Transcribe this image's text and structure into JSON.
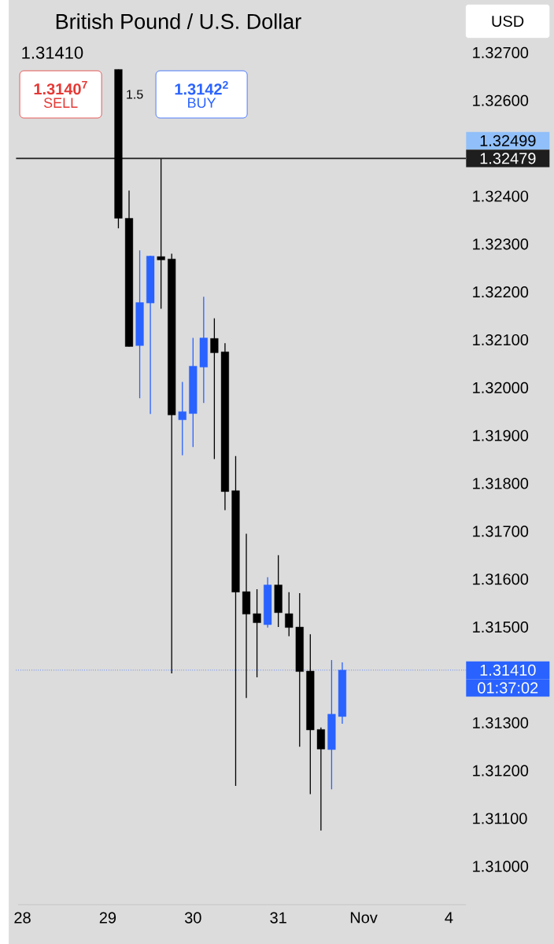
{
  "chart_data": {
    "type": "candlestick",
    "title": "British Pound / U.S. Dollar",
    "categories": [
      "28",
      null,
      null,
      null,
      null,
      null,
      null,
      null,
      "29",
      null,
      null,
      null,
      null,
      null,
      null,
      null,
      "30",
      null,
      null,
      null,
      null,
      null,
      null,
      null,
      "31",
      null,
      null,
      null,
      null,
      null,
      null,
      null,
      "Nov",
      null,
      null,
      null,
      null,
      null,
      null,
      null,
      "4"
    ],
    "ohlc": [
      null,
      null,
      null,
      null,
      null,
      null,
      null,
      null,
      null,
      [
        1.32665,
        1.32665,
        1.32333,
        1.32354
      ],
      [
        1.32354,
        1.32412,
        1.32086,
        1.32086
      ],
      [
        1.32088,
        1.32287,
        1.31978,
        1.32178
      ],
      [
        1.32177,
        1.32276,
        1.31945,
        1.32275
      ],
      [
        1.32274,
        1.32478,
        1.32165,
        1.32267
      ],
      [
        1.32269,
        1.3228,
        1.31403,
        1.31943
      ],
      [
        1.31933,
        1.32012,
        1.31859,
        1.3195
      ],
      [
        1.31946,
        1.32104,
        1.31876,
        1.32045
      ],
      [
        1.32043,
        1.3219,
        1.31968,
        1.32104
      ],
      [
        1.32103,
        1.32145,
        1.31851,
        1.32073
      ],
      [
        1.32075,
        1.32093,
        1.31744,
        1.31783
      ],
      [
        1.31785,
        1.31857,
        1.31168,
        1.31573
      ],
      [
        1.31574,
        1.31695,
        1.31352,
        1.31527
      ],
      [
        1.31528,
        1.31579,
        1.31395,
        1.31509
      ],
      [
        1.31505,
        1.31604,
        1.31499,
        1.31588
      ],
      [
        1.31588,
        1.3165,
        1.315,
        1.3153
      ],
      [
        1.31528,
        1.31573,
        1.31481,
        1.31499
      ],
      [
        1.315,
        1.31571,
        1.3125,
        1.31407
      ],
      [
        1.31408,
        1.31485,
        1.31151,
        1.31285
      ],
      [
        1.31286,
        1.3129,
        1.31075,
        1.31245
      ],
      [
        1.31244,
        1.31431,
        1.31161,
        1.31318
      ],
      [
        1.31313,
        1.31426,
        1.31298,
        1.3141
      ],
      null,
      null,
      null,
      null,
      null,
      null,
      null,
      null,
      null,
      null
    ],
    "colors": [
      null,
      null,
      null,
      null,
      null,
      null,
      null,
      null,
      null,
      "#000000",
      "#000000",
      "#2962ff",
      "#2962ff",
      "#000000",
      "#000000",
      "#2962ff",
      "#2962ff",
      "#2962ff",
      "#000000",
      "#000000",
      "#000000",
      "#000000",
      "#000000",
      "#2962ff",
      "#000000",
      "#000000",
      "#000000",
      "#000000",
      "#000000",
      "#2962ff",
      "#2962ff",
      null,
      null,
      null,
      null,
      null,
      null,
      null,
      null,
      null,
      null
    ],
    "ylim": [
      1.3092,
      1.3281
    ],
    "yticks": [
      {
        "value": 1.31,
        "label": "1.31000"
      },
      {
        "value": 1.311,
        "label": "1.31100"
      },
      {
        "value": 1.312,
        "label": "1.31200"
      },
      {
        "value": 1.313,
        "label": "1.31300"
      },
      {
        "value": 1.315,
        "label": "1.31500"
      },
      {
        "value": 1.316,
        "label": "1.31600"
      },
      {
        "value": 1.317,
        "label": "1.31700"
      },
      {
        "value": 1.318,
        "label": "1.31800"
      },
      {
        "value": 1.319,
        "label": "1.31900"
      },
      {
        "value": 1.32,
        "label": "1.32000"
      },
      {
        "value": 1.321,
        "label": "1.32100"
      },
      {
        "value": 1.322,
        "label": "1.32200"
      },
      {
        "value": 1.323,
        "label": "1.32300"
      },
      {
        "value": 1.324,
        "label": "1.32400"
      },
      {
        "value": 1.326,
        "label": "1.32600"
      },
      {
        "value": 1.327,
        "label": "1.32700"
      }
    ],
    "ref_lines": [
      {
        "axis": "y",
        "value": 1.32479,
        "label": "1.32479",
        "color": "#1e1e1e",
        "line_style": "solid"
      },
      {
        "axis": "y",
        "value": 1.3141,
        "label": "1.31410",
        "color": "#2962ff",
        "line_style": "dotted"
      }
    ],
    "annotations": [
      "1.31410",
      "1.3140$^{7}$",
      "SELL",
      "1.5",
      "1.3142$^{2}$",
      "BUY",
      "USD",
      "01:37:02",
      "1.32499"
    ],
    "grid": false
  }
}
